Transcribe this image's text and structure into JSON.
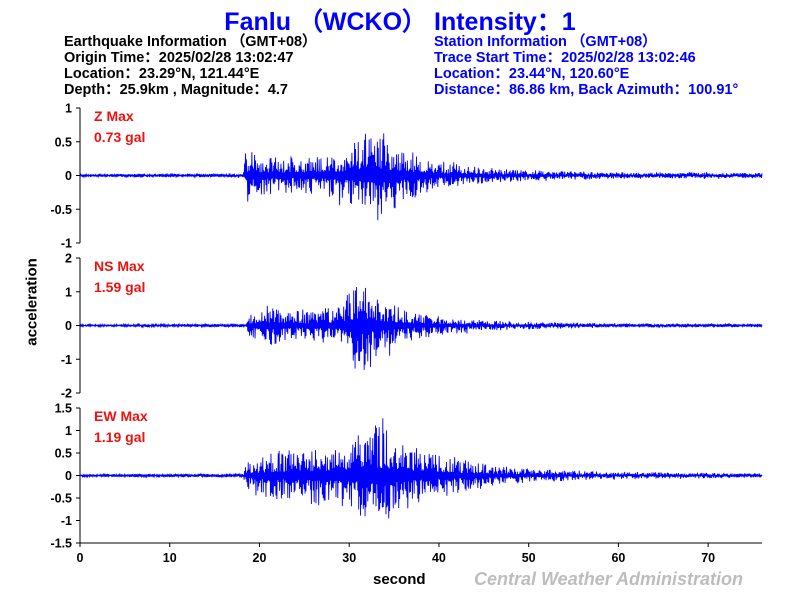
{
  "header": {
    "title": "Fanlu （WCKO） Intensity：1"
  },
  "earthquake_info": {
    "heading": "Earthquake Information （GMT+08）",
    "origin_time": "Origin Time：2025/02/28 13:02:47",
    "location": "Location：23.29°N, 121.44°E",
    "depth_magnitude": "Depth：25.9km , Magnitude：4.7"
  },
  "station_info": {
    "heading": "Station Information （GMT+08）",
    "trace_start": "Trace Start Time：2025/02/28 13:02:46",
    "location": "Location：23.44°N, 120.60°E",
    "distance": "Distance：86.86 km, Back Azimuth：100.91°"
  },
  "footer": {
    "agency": "Central Weather Administration"
  },
  "colors": {
    "trace": "#0000ff",
    "max_label": "#ee1111",
    "title": "#0000ff",
    "agency": "#bdbdbd"
  },
  "chart_data": {
    "type": "line",
    "xlabel": "second",
    "ylabel": "acceleration",
    "xlim": [
      0,
      76
    ],
    "xticks": [
      "0",
      "10",
      "20",
      "30",
      "40",
      "50",
      "60",
      "70"
    ],
    "p_arrival_s": 18.3,
    "peak_time_s": 32.5,
    "panels": [
      {
        "component": "Z",
        "max_label": "Z Max",
        "max_value": "0.73 gal",
        "ylim": [
          -1,
          1
        ],
        "yticks": [
          "1",
          "0.5",
          "0",
          "-0.5",
          "-1"
        ],
        "envelope": [
          [
            0,
            0.02
          ],
          [
            18.2,
            0.03
          ],
          [
            18.5,
            0.4
          ],
          [
            20,
            0.3
          ],
          [
            24,
            0.25
          ],
          [
            28,
            0.3
          ],
          [
            30,
            0.45
          ],
          [
            32,
            0.6
          ],
          [
            33,
            0.72
          ],
          [
            36,
            0.4
          ],
          [
            40,
            0.2
          ],
          [
            45,
            0.12
          ],
          [
            50,
            0.08
          ],
          [
            60,
            0.05
          ],
          [
            76,
            0.04
          ]
        ]
      },
      {
        "component": "NS",
        "max_label": "NS Max",
        "max_value": "1.59 gal",
        "ylim": [
          -2,
          2
        ],
        "yticks": [
          "2",
          "1",
          "0",
          "-1",
          "-2"
        ],
        "envelope": [
          [
            0,
            0.03
          ],
          [
            18.5,
            0.05
          ],
          [
            19,
            0.4
          ],
          [
            21,
            0.6
          ],
          [
            25,
            0.4
          ],
          [
            29,
            0.6
          ],
          [
            30.5,
            1.2
          ],
          [
            31.5,
            1.55
          ],
          [
            33,
            1.0
          ],
          [
            36,
            0.5
          ],
          [
            40,
            0.3
          ],
          [
            45,
            0.15
          ],
          [
            52,
            0.1
          ],
          [
            60,
            0.06
          ],
          [
            76,
            0.05
          ]
        ]
      },
      {
        "component": "EW",
        "max_label": "EW Max",
        "max_value": "1.19 gal",
        "ylim": [
          -1.5,
          1.5
        ],
        "yticks": [
          "1.5",
          "1",
          "0.5",
          "0",
          "-0.5",
          "-1",
          "-1.5"
        ],
        "envelope": [
          [
            0,
            0.03
          ],
          [
            18.2,
            0.04
          ],
          [
            18.5,
            0.3
          ],
          [
            21,
            0.5
          ],
          [
            24,
            0.6
          ],
          [
            28,
            0.7
          ],
          [
            31,
            0.9
          ],
          [
            32.5,
            1.19
          ],
          [
            35,
            1.0
          ],
          [
            38,
            0.6
          ],
          [
            42,
            0.4
          ],
          [
            46,
            0.25
          ],
          [
            50,
            0.15
          ],
          [
            60,
            0.08
          ],
          [
            76,
            0.05
          ]
        ]
      }
    ]
  }
}
